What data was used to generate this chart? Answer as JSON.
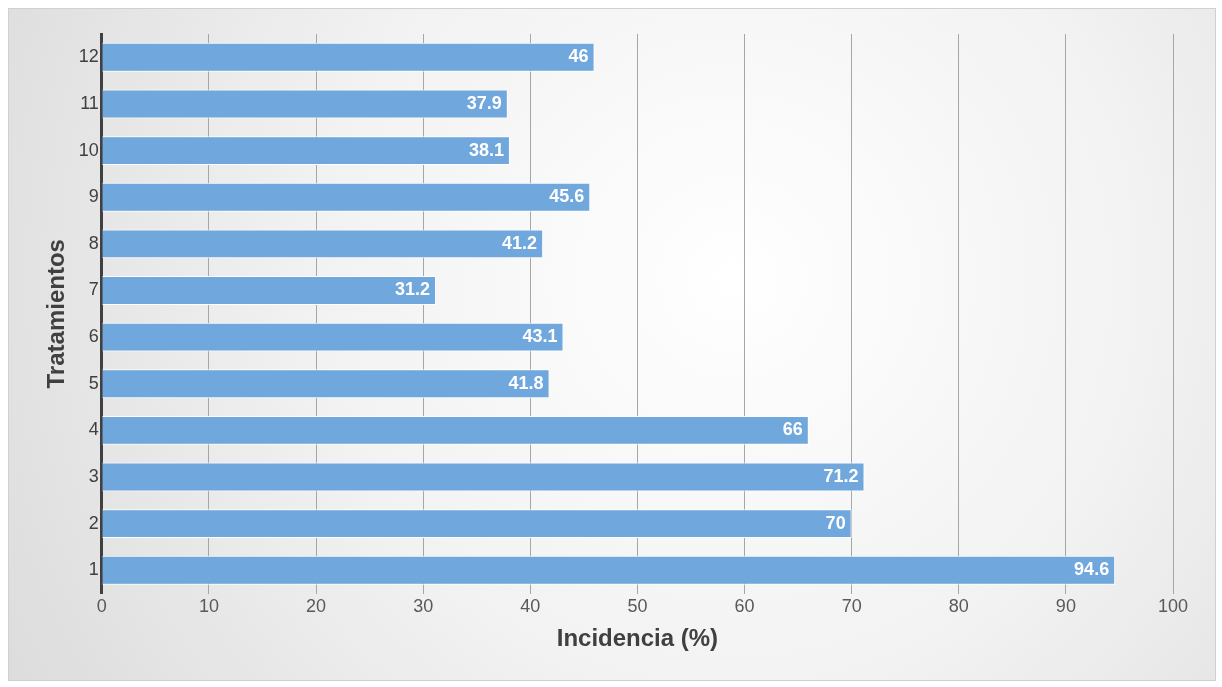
{
  "chart_data": {
    "type": "bar",
    "orientation": "horizontal",
    "xlabel": "Incidencia (%)",
    "ylabel": "Tratamientos",
    "categories": [
      "12",
      "11",
      "10",
      "9",
      "8",
      "7",
      "6",
      "5",
      "4",
      "3",
      "2",
      "1"
    ],
    "values": [
      46,
      37.9,
      38.1,
      45.6,
      41.2,
      31.2,
      43.1,
      41.8,
      66,
      71.2,
      70,
      94.6
    ],
    "color": "#70a7dc",
    "xlim": [
      0,
      100
    ],
    "xticks": [
      0,
      10,
      20,
      30,
      40,
      50,
      60,
      70,
      80,
      90,
      100
    ],
    "grid": "x",
    "data_labels": true,
    "legend": false
  }
}
